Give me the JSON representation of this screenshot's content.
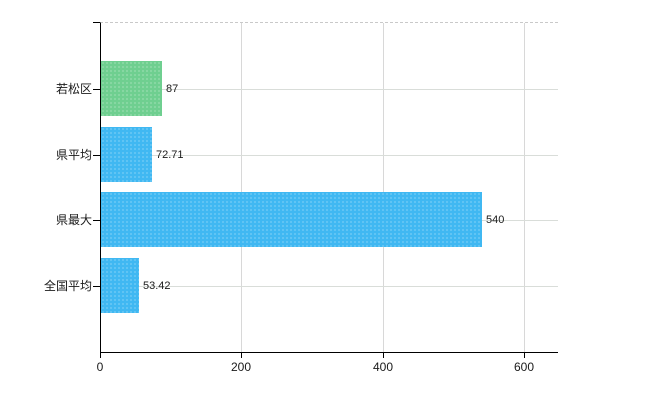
{
  "chart_data": {
    "type": "bar",
    "orientation": "horizontal",
    "title": "",
    "xlabel": "",
    "ylabel": "",
    "categories": [
      "若松区",
      "県平均",
      "県最大",
      "全国平均"
    ],
    "values": [
      87,
      72.71,
      540,
      53.42
    ],
    "value_labels": [
      "87",
      "72.71",
      "540",
      "53.42"
    ],
    "series": [
      {
        "name": "",
        "values": [
          87,
          72.71,
          540,
          53.42
        ]
      }
    ],
    "bar_colors": [
      "#6FCF90",
      "#40B8F2",
      "#40B8F2",
      "#40B8F2"
    ],
    "xticks": [
      0,
      200,
      400,
      600
    ],
    "xtick_labels": [
      "0",
      "200",
      "400",
      "600"
    ],
    "xlim": [
      0,
      647
    ],
    "grid": true,
    "legend": false
  },
  "colors": {
    "axis": "#000000",
    "gridline_h": "#D9DDD9",
    "gridline_v": "#D8D8D8",
    "plot_top_border": "#C9C9C9",
    "background": "#FFFFFF",
    "label_text": "#1A1A1A",
    "bar_green": "#6FCF90",
    "bar_blue": "#40B8F2"
  }
}
